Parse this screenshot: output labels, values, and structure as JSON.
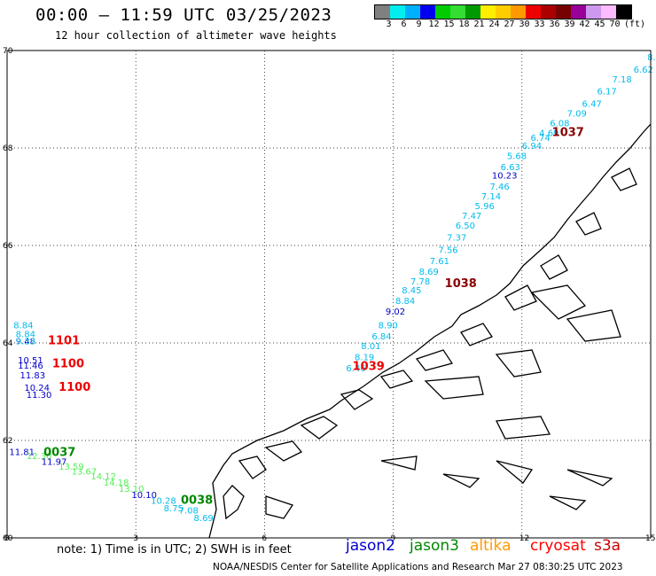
{
  "header": {
    "title": "00:00 – 11:59 UTC 03/25/2023",
    "subtitle": "12 hour collection of altimeter wave heights"
  },
  "legend": {
    "colors": [
      "#808080",
      "#00eeee",
      "#00b0ff",
      "#0000ee",
      "#00cc00",
      "#33dd33",
      "#009900",
      "#ffee00",
      "#ffcc00",
      "#ff9900",
      "#ee0000",
      "#aa0000",
      "#770000",
      "#990099",
      "#cc99ee",
      "#ffbbff",
      "#000000"
    ],
    "labels": [
      "3",
      "6",
      "9",
      "12",
      "15",
      "18",
      "21",
      "24",
      "27",
      "30",
      "33",
      "36",
      "39",
      "42",
      "45",
      "70"
    ],
    "unit": "(ft)"
  },
  "axes": {
    "x_ticks": [
      "0",
      "3",
      "6",
      "9",
      "12",
      "15"
    ],
    "y_ticks": [
      "70",
      "68",
      "66",
      "64",
      "62",
      "60"
    ]
  },
  "colors": {
    "jason2": "#0000cc",
    "jason3": "#008800",
    "altika": "#ff9900",
    "cryosat": "#ff0000",
    "s3a": "#cc0000",
    "coast": "#000000"
  },
  "wave_labels": [
    {
      "lon": 14.92,
      "lat": 69.8,
      "t": "8.",
      "c": "cyan"
    },
    {
      "lon": 14.6,
      "lat": 69.55,
      "t": "6.62",
      "c": "cyan"
    },
    {
      "lon": 14.1,
      "lat": 69.35,
      "t": "7.18",
      "c": "cyan"
    },
    {
      "lon": 13.75,
      "lat": 69.1,
      "t": "6.17",
      "c": "cyan"
    },
    {
      "lon": 13.4,
      "lat": 68.85,
      "t": "6.47",
      "c": "cyan"
    },
    {
      "lon": 13.05,
      "lat": 68.65,
      "t": "7.09",
      "c": "cyan"
    },
    {
      "lon": 12.65,
      "lat": 68.45,
      "t": "6.08",
      "c": "cyan"
    },
    {
      "lon": 12.4,
      "lat": 68.25,
      "t": "4.69",
      "c": "cyan"
    },
    {
      "lon": 12.2,
      "lat": 68.15,
      "t": "6.74",
      "c": "cyan"
    },
    {
      "lon": 12.0,
      "lat": 67.98,
      "t": "6.94",
      "c": "cyan"
    },
    {
      "lon": 11.65,
      "lat": 67.77,
      "t": "5.68",
      "c": "cyan"
    },
    {
      "lon": 11.5,
      "lat": 67.55,
      "t": "6.63",
      "c": "cyan"
    },
    {
      "lon": 11.3,
      "lat": 67.37,
      "t": "10.23",
      "c": "blue"
    },
    {
      "lon": 11.25,
      "lat": 67.15,
      "t": "7.46",
      "c": "cyan"
    },
    {
      "lon": 11.05,
      "lat": 66.95,
      "t": "7.14",
      "c": "cyan"
    },
    {
      "lon": 10.9,
      "lat": 66.75,
      "t": "5.96",
      "c": "cyan"
    },
    {
      "lon": 10.6,
      "lat": 66.55,
      "t": "7.47",
      "c": "cyan"
    },
    {
      "lon": 10.45,
      "lat": 66.35,
      "t": "6.50",
      "c": "cyan"
    },
    {
      "lon": 10.25,
      "lat": 66.1,
      "t": "7.37",
      "c": "cyan"
    },
    {
      "lon": 10.05,
      "lat": 65.85,
      "t": "7.56",
      "c": "cyan"
    },
    {
      "lon": 9.85,
      "lat": 65.62,
      "t": "7.61",
      "c": "cyan"
    },
    {
      "lon": 9.6,
      "lat": 65.4,
      "t": "8.69",
      "c": "cyan"
    },
    {
      "lon": 9.4,
      "lat": 65.2,
      "t": "7.78",
      "c": "cyan"
    },
    {
      "lon": 9.2,
      "lat": 65.02,
      "t": "8.45",
      "c": "cyan"
    },
    {
      "lon": 9.05,
      "lat": 64.8,
      "t": "8.84",
      "c": "cyan"
    },
    {
      "lon": 8.82,
      "lat": 64.58,
      "t": "9.02",
      "c": "blue"
    },
    {
      "lon": 8.65,
      "lat": 64.3,
      "t": "8.90",
      "c": "cyan"
    },
    {
      "lon": 8.5,
      "lat": 64.07,
      "t": "6.84",
      "c": "cyan"
    },
    {
      "lon": 8.25,
      "lat": 63.87,
      "t": "8.01",
      "c": "cyan"
    },
    {
      "lon": 8.1,
      "lat": 63.65,
      "t": "8.19",
      "c": "cyan"
    },
    {
      "lon": 7.9,
      "lat": 63.42,
      "t": "6.46",
      "c": "cyan"
    },
    {
      "lon": 0.15,
      "lat": 64.3,
      "t": "8.84",
      "c": "cyan"
    },
    {
      "lon": 0.2,
      "lat": 64.12,
      "t": "8.84",
      "c": "cyan"
    },
    {
      "lon": 0.2,
      "lat": 63.97,
      "t": "9.48",
      "c": "blue"
    },
    {
      "lon": 0.2,
      "lat": 63.97,
      "t": "9.33",
      "c": "cyan"
    },
    {
      "lon": 0.25,
      "lat": 63.58,
      "t": "10.51",
      "c": "blue"
    },
    {
      "lon": 0.25,
      "lat": 63.47,
      "t": "11.46",
      "c": "blue"
    },
    {
      "lon": 0.3,
      "lat": 63.27,
      "t": "11.83",
      "c": "blue"
    },
    {
      "lon": 0.4,
      "lat": 63.02,
      "t": "10.24",
      "c": "blue"
    },
    {
      "lon": 0.45,
      "lat": 62.87,
      "t": "11.30",
      "c": "blue"
    },
    {
      "lon": 0.05,
      "lat": 61.7,
      "t": "11.81",
      "c": "blue"
    },
    {
      "lon": 0.45,
      "lat": 61.62,
      "t": "12.30",
      "c": "lgreen"
    },
    {
      "lon": 0.8,
      "lat": 61.5,
      "t": "11.97",
      "c": "blue"
    },
    {
      "lon": 1.2,
      "lat": 61.4,
      "t": "13.59",
      "c": "lgreen"
    },
    {
      "lon": 1.5,
      "lat": 61.3,
      "t": "13.67",
      "c": "lgreen"
    },
    {
      "lon": 1.95,
      "lat": 61.2,
      "t": "14.12",
      "c": "lgreen"
    },
    {
      "lon": 2.25,
      "lat": 61.07,
      "t": "14.18",
      "c": "lgreen"
    },
    {
      "lon": 2.6,
      "lat": 60.95,
      "t": "13.10",
      "c": "lgreen"
    },
    {
      "lon": 2.9,
      "lat": 60.82,
      "t": "10.10",
      "c": "blue"
    },
    {
      "lon": 3.35,
      "lat": 60.7,
      "t": "10.28",
      "c": "cyan"
    },
    {
      "lon": 3.65,
      "lat": 60.55,
      "t": "8.75",
      "c": "cyan"
    },
    {
      "lon": 4.0,
      "lat": 60.5,
      "t": "7.08",
      "c": "cyan"
    },
    {
      "lon": 4.35,
      "lat": 60.35,
      "t": "8.69",
      "c": "cyan"
    }
  ],
  "time_labels": [
    {
      "lon": 12.7,
      "lat": 68.25,
      "t": "1037",
      "c": "s3a"
    },
    {
      "lon": 10.2,
      "lat": 65.15,
      "t": "1038",
      "c": "s3a"
    },
    {
      "lon": 8.05,
      "lat": 63.45,
      "t": "1039",
      "c": "cryo"
    },
    {
      "lon": 0.95,
      "lat": 63.97,
      "t": "1101",
      "c": "cryo"
    },
    {
      "lon": 1.05,
      "lat": 63.5,
      "t": "1100",
      "c": "cryo"
    },
    {
      "lon": 1.2,
      "lat": 63.02,
      "t": "1100",
      "c": "cryo"
    },
    {
      "lon": 0.85,
      "lat": 61.68,
      "t": "0037",
      "c": "j3"
    },
    {
      "lon": 4.05,
      "lat": 60.7,
      "t": "0038",
      "c": "j3"
    }
  ],
  "footer": {
    "note": "note:  1) Time is in UTC;  2) SWH is in feet",
    "satellites": [
      "jason2",
      "jason3",
      "altika",
      "cryosat",
      "s3a"
    ],
    "credit": "NOAA/NESDIS Center for Satellite Applications and Research    Mar 27 08:30:25 UTC 2023"
  }
}
